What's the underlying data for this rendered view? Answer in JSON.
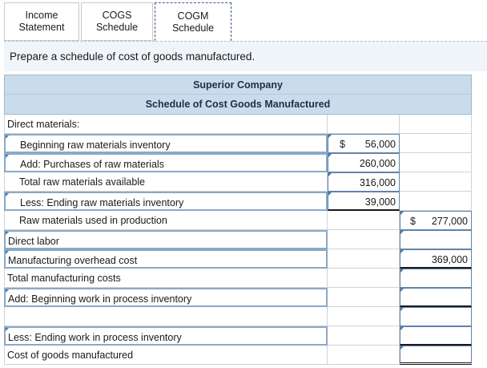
{
  "tabs": [
    {
      "label": "Income\nStatement"
    },
    {
      "label": "COGS\nSchedule"
    },
    {
      "label": "COGM\nSchedule"
    }
  ],
  "instruction": "Prepare a schedule of cost of goods manufactured.",
  "schedule": {
    "company": "Superior Company",
    "title": "Schedule of Cost Goods Manufactured",
    "rows": {
      "direct_materials": "Direct materials:",
      "beginning_raw": {
        "label": "Beginning raw materials inventory",
        "currency": "$",
        "value": "56,000"
      },
      "purchases": {
        "label": "Add: Purchases of raw materials",
        "value": "260,000"
      },
      "total_raw": {
        "label": "Total raw materials available",
        "value": "316,000"
      },
      "ending_raw": {
        "label": "Less: Ending raw materials inventory",
        "value": "39,000"
      },
      "raw_used": {
        "label": "Raw materials used in production",
        "currency": "$",
        "value": "277,000"
      },
      "direct_labor": {
        "label": "Direct labor",
        "value": ""
      },
      "overhead": {
        "label": "Manufacturing overhead cost",
        "value": "369,000"
      },
      "total_mfg": {
        "label": "Total manufacturing costs",
        "value": ""
      },
      "beg_wip": {
        "label": "Add: Beginning work in process inventory",
        "value": ""
      },
      "end_wip": {
        "label": "Less: Ending work in process inventory",
        "value": ""
      },
      "cogm": {
        "label": "Cost of goods manufactured",
        "value": ""
      }
    }
  }
}
